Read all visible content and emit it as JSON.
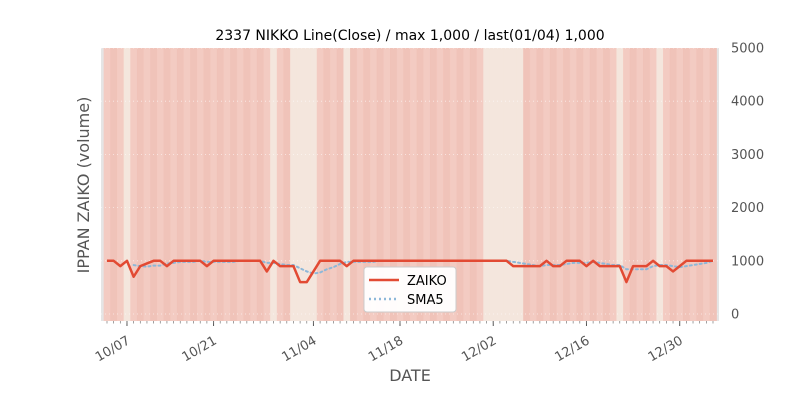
{
  "chart_data": {
    "type": "line",
    "title": "2337 NIKKO Line(Close) / max 1,000 / last(01/04) 1,000",
    "xlabel": "DATE",
    "ylabel": "IPPAN ZAIKO (volume)",
    "ylim": [
      0,
      5000
    ],
    "y_ticks": [
      0,
      1000,
      2000,
      3000,
      4000,
      5000
    ],
    "y_tick_labels": [
      "0",
      "1000",
      "2000",
      "3000",
      "4000",
      "5000"
    ],
    "x_ticks": [
      {
        "label": "10/07",
        "index": 3
      },
      {
        "label": "10/21",
        "index": 16
      },
      {
        "label": "11/04",
        "index": 31
      },
      {
        "label": "11/18",
        "index": 44
      },
      {
        "label": "12/02",
        "index": 58
      },
      {
        "label": "12/16",
        "index": 72
      },
      {
        "label": "12/30",
        "index": 86
      }
    ],
    "x_count": 92,
    "series": [
      {
        "name": "ZAIKO",
        "color": "#e24a33",
        "values": [
          1000,
          1000,
          900,
          1000,
          700,
          900,
          950,
          1000,
          1000,
          900,
          1000,
          1000,
          1000,
          1000,
          1000,
          900,
          1000,
          1000,
          1000,
          1000,
          1000,
          1000,
          1000,
          1000,
          800,
          1000,
          900,
          900,
          900,
          600,
          600,
          800,
          1000,
          1000,
          1000,
          1000,
          900,
          1000,
          1000,
          1000,
          1000,
          1000,
          1000,
          1000,
          1000,
          1000,
          1000,
          1000,
          1000,
          1000,
          1000,
          1000,
          1000,
          1000,
          1000,
          1000,
          1000,
          1000,
          1000,
          1000,
          1000,
          900,
          900,
          900,
          900,
          900,
          1000,
          900,
          900,
          1000,
          1000,
          1000,
          900,
          1000,
          900,
          900,
          900,
          900,
          600,
          900,
          900,
          900,
          1000,
          900,
          900,
          800,
          900,
          1000,
          1000,
          1000,
          1000,
          1000
        ]
      },
      {
        "name": "SMA5",
        "color": "#8db8d9",
        "values": [
          null,
          null,
          null,
          null,
          920,
          900,
          890,
          910,
          910,
          950,
          960,
          980,
          980,
          980,
          1000,
          980,
          980,
          980,
          980,
          980,
          1000,
          1000,
          1000,
          1000,
          960,
          960,
          940,
          920,
          920,
          860,
          800,
          760,
          780,
          840,
          880,
          940,
          980,
          980,
          980,
          980,
          980,
          1000,
          1000,
          1000,
          1000,
          1000,
          1000,
          1000,
          1000,
          1000,
          1000,
          1000,
          1000,
          1000,
          1000,
          1000,
          1000,
          1000,
          1000,
          1000,
          1000,
          980,
          960,
          940,
          920,
          900,
          920,
          920,
          920,
          940,
          960,
          960,
          960,
          980,
          960,
          940,
          920,
          920,
          840,
          840,
          840,
          840,
          900,
          920,
          920,
          900,
          880,
          900,
          920,
          940,
          960,
          1000
        ]
      }
    ],
    "legend": {
      "placement": "lower-center",
      "entries": [
        "ZAIKO",
        "SMA5"
      ]
    }
  }
}
